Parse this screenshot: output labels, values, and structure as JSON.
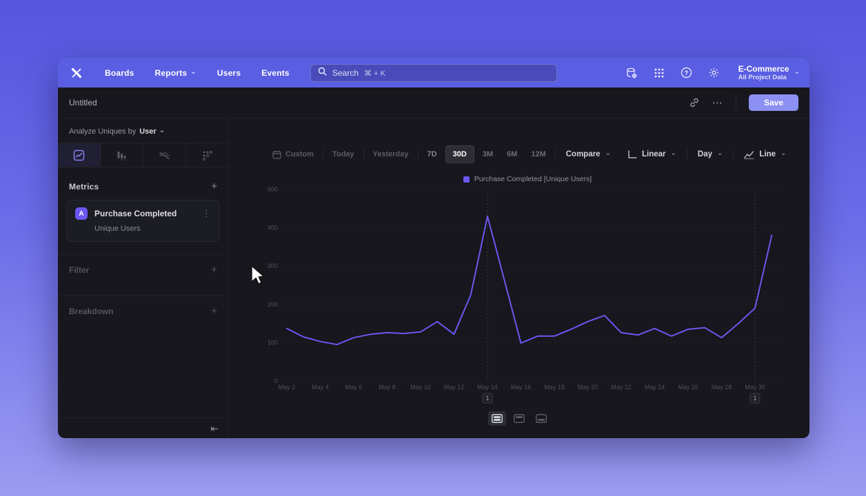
{
  "glyphs": {
    "chevron_down": "⌄",
    "plus": "+",
    "kebab": "⋮",
    "ellipsis": "⋯",
    "collapse_left": "⇤"
  },
  "colors": {
    "accent": "#6a58f0",
    "nav_background": "#5a5ee2",
    "save_button": "#8c90f2",
    "window_background": "#17171d"
  },
  "nav": {
    "items": [
      "Boards",
      "Reports",
      "Users",
      "Events"
    ],
    "search_placeholder": "Search",
    "search_shortcut": "⌘ + K",
    "project_name": "E-Commerce",
    "project_scope": "All Project Data"
  },
  "header": {
    "title": "Untitled",
    "save_label": "Save"
  },
  "sidebar": {
    "analyze_prefix": "Analyze Uniques by",
    "analyze_value": "User",
    "tabs": [
      "insights",
      "funnels",
      "flows",
      "retention"
    ],
    "metrics_title": "Metrics",
    "metric_card": {
      "badge": "A",
      "name": "Purchase Completed",
      "subtitle": "Unique Users"
    },
    "filter_label": "Filter",
    "breakdown_label": "Breakdown"
  },
  "toolbar": {
    "ranges": [
      "Custom",
      "Today",
      "Yesterday",
      "7D",
      "30D",
      "3M",
      "6M",
      "12M"
    ],
    "selected_range": "30D",
    "compare_label": "Compare",
    "scale_label": "Linear",
    "interval_label": "Day",
    "chart_type_label": "Line"
  },
  "chart_data": {
    "type": "line",
    "legend": "Purchase Completed [Unique Users]",
    "legend_position": "top-center",
    "grid": "dashed-horizontal",
    "ylim": [
      0,
      500
    ],
    "yticks": [
      0,
      100,
      200,
      300,
      400,
      500
    ],
    "xtick_every": 2,
    "x": [
      "May 2",
      "May 3",
      "May 4",
      "May 5",
      "May 6",
      "May 7",
      "May 8",
      "May 9",
      "May 10",
      "May 11",
      "May 12",
      "May 13",
      "May 14",
      "May 15",
      "May 16",
      "May 17",
      "May 18",
      "May 19",
      "May 20",
      "May 21",
      "May 22",
      "May 23",
      "May 24",
      "May 25",
      "May 26",
      "May 27",
      "May 28",
      "May 29",
      "May 30",
      "May 31"
    ],
    "series": [
      {
        "name": "Purchase Completed [Unique Users]",
        "color": "#6a58f0",
        "values": [
          137,
          115,
          103,
          95,
          113,
          122,
          126,
          124,
          128,
          155,
          122,
          225,
          430,
          265,
          99,
          117,
          117,
          135,
          155,
          171,
          126,
          120,
          137,
          117,
          135,
          139,
          113,
          150,
          190,
          380
        ]
      }
    ],
    "annotations": [
      {
        "label": "1",
        "date": "May 14"
      },
      {
        "label": "1",
        "date": "May 30"
      }
    ]
  }
}
